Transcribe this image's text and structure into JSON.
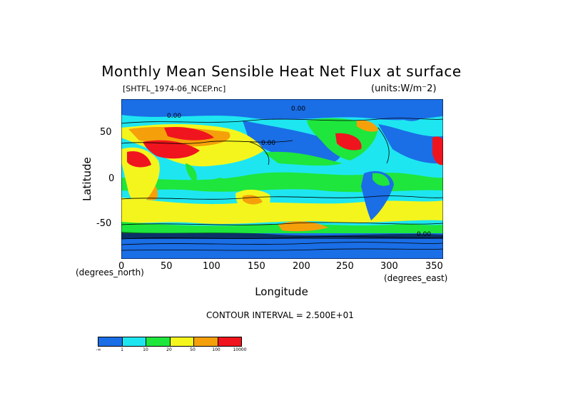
{
  "title": "Monthly Mean Sensible Heat Net Flux at surface",
  "file_label": "[SHTFL_1974-06_NCEP.nc]",
  "units_label": "(units:W/m⁻2)",
  "axes": {
    "y_label": "Latitude",
    "x_label": "Longitude",
    "y_ticks": [
      "50",
      "0",
      "-50"
    ],
    "x_ticks": [
      "0",
      "50",
      "100",
      "150",
      "200",
      "250",
      "300",
      "350"
    ],
    "y_unit": "(degrees_north)",
    "x_unit": "(degrees_east)"
  },
  "contour_label": "CONTOUR INTERVAL = 2.500E+01",
  "map_labels": [
    "0.00",
    "0.00",
    "0.00",
    "0.00"
  ],
  "colorbar": {
    "colors": [
      "#1a6ee6",
      "#1ee6f0",
      "#1ee63c",
      "#f5f51e",
      "#f5a00a",
      "#f0141e"
    ],
    "labels": [
      "-∞",
      "1",
      "10",
      "20",
      "50",
      "100",
      "10000"
    ]
  },
  "chart_data": {
    "type": "heatmap",
    "title": "Monthly Mean Sensible Heat Net Flux at surface",
    "xlabel": "Longitude",
    "ylabel": "Latitude",
    "xlim": [
      0,
      360
    ],
    "ylim": [
      -90,
      90
    ],
    "x_ticks": [
      0,
      50,
      100,
      150,
      200,
      250,
      300,
      350
    ],
    "y_ticks": [
      -50,
      0,
      50
    ],
    "units": "W/m^2",
    "contour_interval": 25,
    "color_levels": [
      "-inf",
      1,
      10,
      20,
      50,
      100,
      10000
    ]
  }
}
